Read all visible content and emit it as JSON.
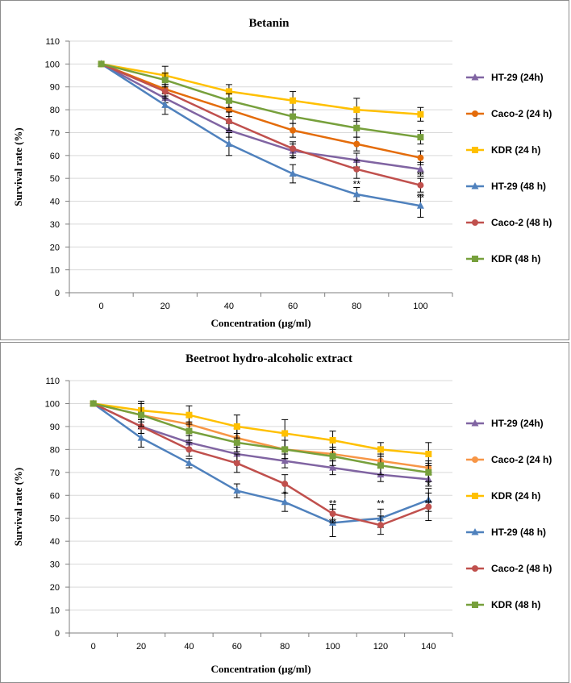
{
  "chart_data": [
    {
      "type": "line",
      "title": "Betanin",
      "xlabel": "Concentration (µg/ml)",
      "ylabel": "Survival rate (%)",
      "categories": [
        "0",
        "20",
        "40",
        "60",
        "80",
        "100"
      ],
      "ylim": [
        0,
        110
      ],
      "yticks": [
        0,
        10,
        20,
        30,
        40,
        50,
        60,
        70,
        80,
        90,
        100,
        110
      ],
      "grid": true,
      "legend_position": "right",
      "series": [
        {
          "name": "HT-29 (24h)",
          "color": "#8064a2",
          "marker": "triangle",
          "values": [
            100,
            85,
            71,
            62,
            58,
            54
          ],
          "errors": [
            0,
            2,
            3,
            3,
            3,
            3
          ]
        },
        {
          "name": "Caco-2 (24 h)",
          "color": "#e46c0a",
          "marker": "circle",
          "values": [
            100,
            89,
            80,
            71,
            65,
            59
          ],
          "errors": [
            0,
            2,
            3,
            3,
            3,
            3
          ]
        },
        {
          "name": "KDR (24 h)",
          "color": "#ffc000",
          "marker": "square",
          "values": [
            100,
            95,
            88,
            84,
            80,
            78
          ],
          "errors": [
            0,
            4,
            3,
            4,
            5,
            3
          ]
        },
        {
          "name": "HT-29 (48 h)",
          "color": "#4f81bd",
          "marker": "triangle",
          "values": [
            100,
            82,
            65,
            52,
            43,
            38
          ],
          "errors": [
            0,
            4,
            5,
            4,
            3,
            5
          ]
        },
        {
          "name": "Caco-2 (48 h)",
          "color": "#c0504d",
          "marker": "circle",
          "values": [
            100,
            88,
            75,
            63,
            54,
            47
          ],
          "errors": [
            0,
            3,
            4,
            3,
            4,
            3
          ]
        },
        {
          "name": "KDR (48 h)",
          "color": "#77a03c",
          "marker": "square",
          "values": [
            100,
            93,
            84,
            77,
            72,
            68
          ],
          "errors": [
            0,
            3,
            3,
            3,
            4,
            3
          ]
        }
      ],
      "annotations": [
        {
          "x": "60",
          "y": 57,
          "text": "*"
        },
        {
          "x": "80",
          "y": 46,
          "text": "**"
        },
        {
          "x": "100",
          "y": 50,
          "text": "**"
        },
        {
          "x": "100",
          "y": 40,
          "text": "**"
        }
      ]
    },
    {
      "type": "line",
      "title": "Beetroot hydro-alcoholic extract",
      "xlabel": "Concentration (µg/ml)",
      "ylabel": "Survival rate (%)",
      "categories": [
        "0",
        "20",
        "40",
        "60",
        "80",
        "100",
        "120",
        "140"
      ],
      "ylim": [
        0,
        110
      ],
      "yticks": [
        0,
        10,
        20,
        30,
        40,
        50,
        60,
        70,
        80,
        90,
        100,
        110
      ],
      "grid": true,
      "legend_position": "right",
      "series": [
        {
          "name": "HT-29 (24h)",
          "color": "#8064a2",
          "marker": "triangle",
          "values": [
            100,
            90,
            83,
            78,
            75,
            72,
            69,
            67
          ],
          "errors": [
            0,
            3,
            3,
            3,
            3,
            3,
            3,
            3
          ]
        },
        {
          "name": "Caco-2 (24 h)",
          "color": "#f79646",
          "marker": "circle",
          "values": [
            100,
            95,
            91,
            85,
            80,
            78,
            75,
            72
          ],
          "errors": [
            0,
            3,
            3,
            4,
            4,
            3,
            3,
            3
          ]
        },
        {
          "name": "KDR (24 h)",
          "color": "#ffc000",
          "marker": "square",
          "values": [
            100,
            97,
            95,
            90,
            87,
            84,
            80,
            78
          ],
          "errors": [
            0,
            4,
            4,
            5,
            6,
            4,
            3,
            5
          ]
        },
        {
          "name": "HT-29 (48 h)",
          "color": "#4f81bd",
          "marker": "triangle",
          "values": [
            100,
            85,
            74,
            62,
            57,
            48,
            50,
            58
          ],
          "errors": [
            0,
            4,
            2,
            3,
            4,
            6,
            4,
            5
          ]
        },
        {
          "name": "Caco-2 (48 h)",
          "color": "#c0504d",
          "marker": "circle",
          "values": [
            100,
            90,
            80,
            74,
            65,
            52,
            47,
            55
          ],
          "errors": [
            0,
            3,
            3,
            4,
            4,
            4,
            4,
            6
          ]
        },
        {
          "name": "KDR (48 h)",
          "color": "#77a03c",
          "marker": "square",
          "values": [
            100,
            95,
            88,
            83,
            80,
            77,
            73,
            70
          ],
          "errors": [
            0,
            5,
            4,
            4,
            4,
            4,
            4,
            4
          ]
        }
      ],
      "annotations": [
        {
          "x": "80",
          "y": 59,
          "text": "*"
        },
        {
          "x": "100",
          "y": 55,
          "text": "**"
        },
        {
          "x": "100",
          "y": 47,
          "text": "**"
        },
        {
          "x": "120",
          "y": 55,
          "text": "**"
        },
        {
          "x": "140",
          "y": 63,
          "text": "*"
        },
        {
          "x": "140",
          "y": 55,
          "text": "**"
        }
      ]
    }
  ]
}
